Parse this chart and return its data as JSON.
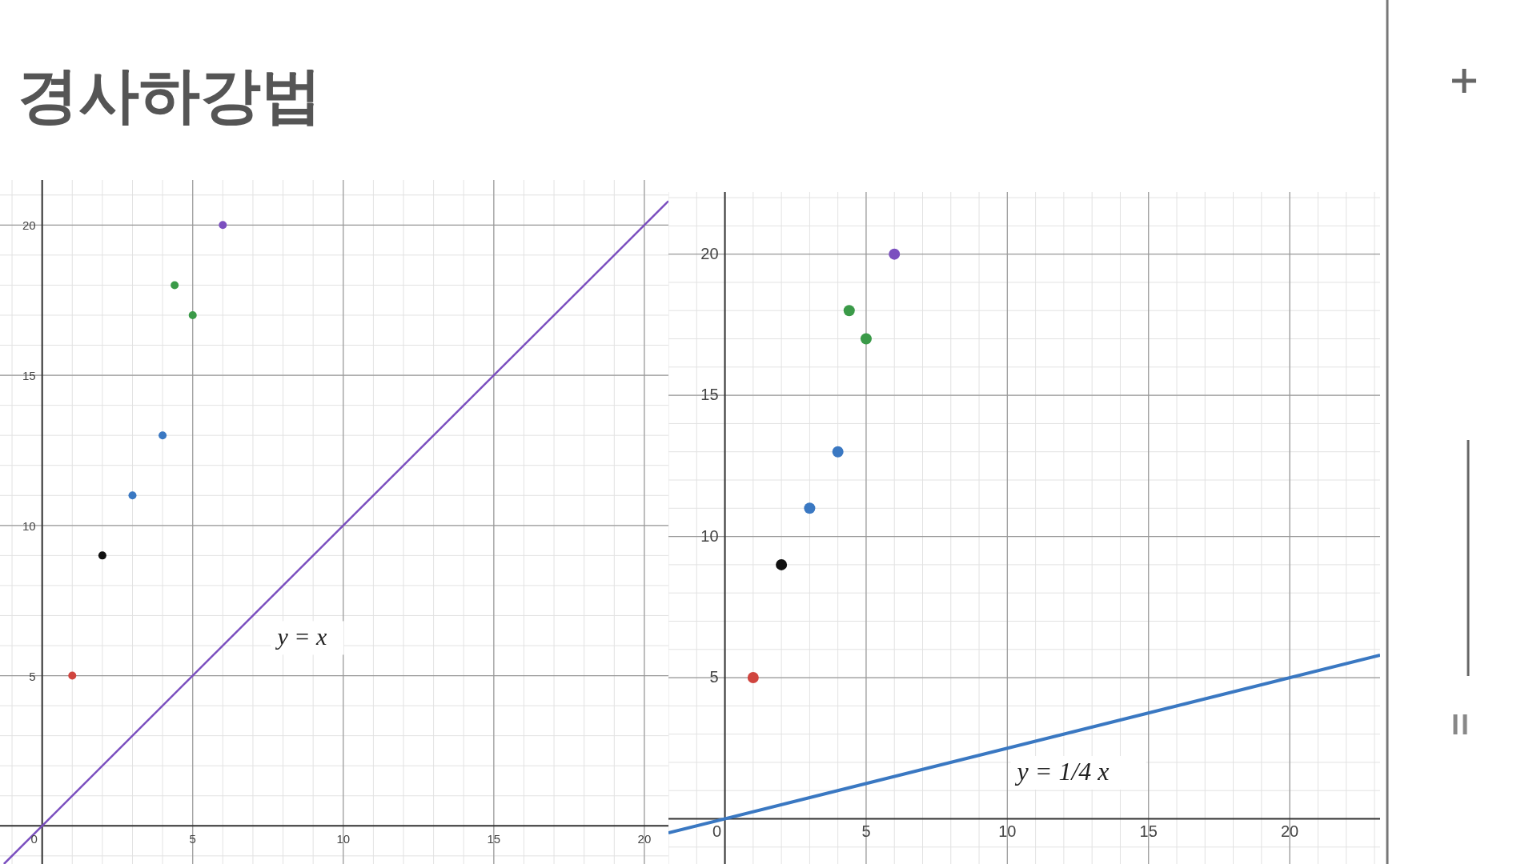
{
  "chart_data": [
    {
      "type": "scatter",
      "title": "경사하강법",
      "xlim": [
        -1.4,
        20.8
      ],
      "ylim": [
        -1.27,
        21.5
      ],
      "xticks": [
        0,
        5,
        10,
        15,
        20
      ],
      "yticks": [
        5,
        10,
        15,
        20
      ],
      "grid": true,
      "series": [
        {
          "marker": "circle",
          "x": [
            1,
            2,
            3,
            4,
            4.4,
            5,
            6
          ],
          "values": [
            5,
            9,
            11,
            13,
            18,
            17,
            20
          ],
          "colors": [
            "#d0453f",
            "#111111",
            "#3a78c2",
            "#3a78c2",
            "#3a9a48",
            "#3a9a48",
            "#7b4fbf"
          ]
        },
        {
          "type": "line",
          "marker": "none",
          "color": "#7b4fbf",
          "x": [
            -1.27,
            20.8
          ],
          "values": [
            -1.27,
            20.8
          ]
        }
      ],
      "annotations": [
        "y = x"
      ]
    },
    {
      "type": "scatter",
      "xlim": [
        -2,
        23.2
      ],
      "ylim": [
        -1.6,
        22.2
      ],
      "xticks": [
        0,
        5,
        10,
        15,
        20
      ],
      "yticks": [
        5,
        10,
        15,
        20
      ],
      "grid": true,
      "series": [
        {
          "marker": "circle",
          "x": [
            1,
            2,
            3,
            4,
            4.4,
            5,
            6
          ],
          "values": [
            5,
            9,
            11,
            13,
            18,
            17,
            20
          ],
          "colors": [
            "#d0453f",
            "#111111",
            "#3a78c2",
            "#3a78c2",
            "#3a9a48",
            "#3a9a48",
            "#7b4fbf"
          ]
        },
        {
          "type": "line",
          "marker": "none",
          "color": "#3a78c2",
          "x": [
            -2,
            23.2
          ],
          "values": [
            -0.5,
            5.8
          ]
        }
      ],
      "annotations": [
        "y = 1/4 x"
      ]
    }
  ]
}
